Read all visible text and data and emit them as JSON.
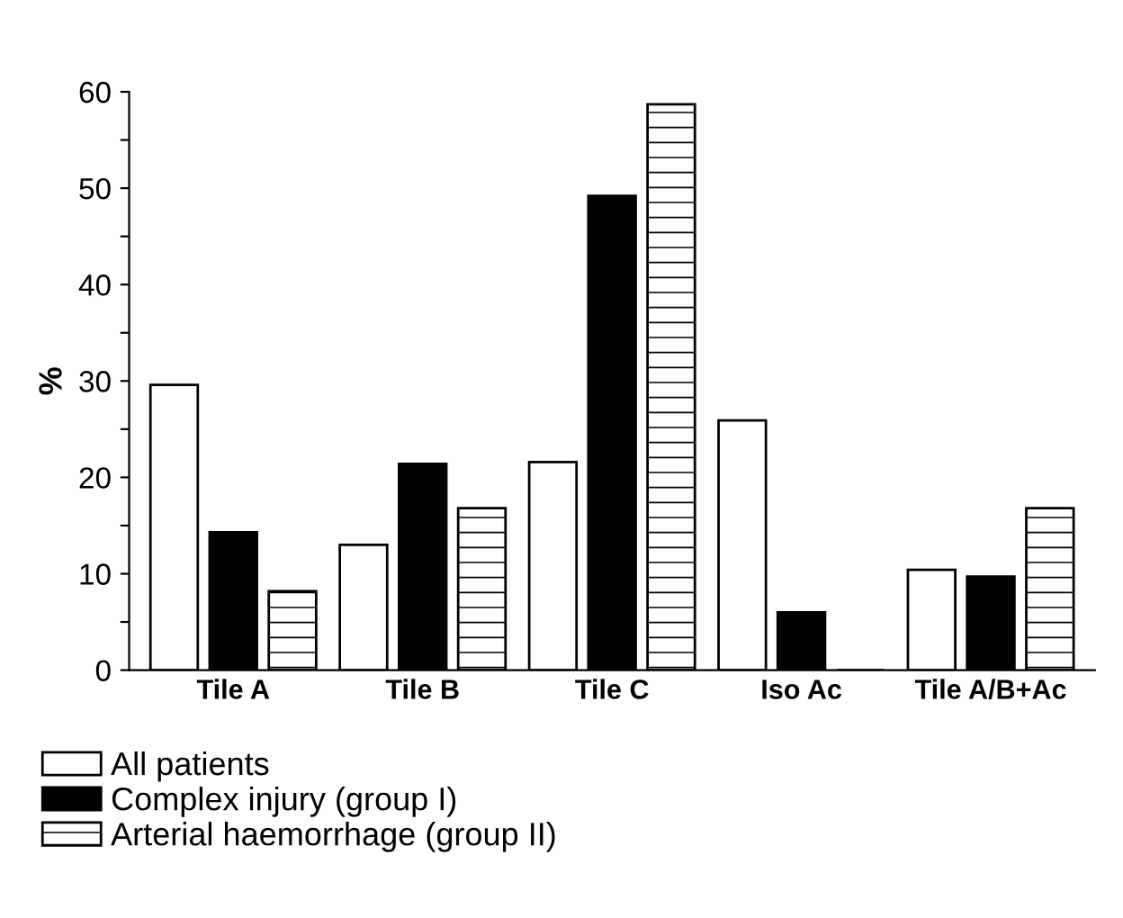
{
  "chart_data": {
    "type": "bar",
    "ylabel": "%",
    "categories": [
      "Tile A",
      "Tile B",
      "Tile C",
      "Iso Ac",
      "Tile A/B+Ac"
    ],
    "series": [
      {
        "name": "All patients",
        "color": "#ffffff",
        "values": [
          29.6,
          13.0,
          21.6,
          25.9,
          10.4
        ]
      },
      {
        "name": "Complex injury (group I)",
        "color": "#000000",
        "values": [
          14.3,
          21.4,
          49.2,
          6.0,
          9.7
        ]
      },
      {
        "name": "Arterial haemorrhage (group II)",
        "color": "#000000",
        "values": [
          8.2,
          16.8,
          58.7,
          0,
          16.8
        ]
      }
    ],
    "ylim": [
      0,
      60
    ],
    "yticks": [
      0,
      {
        "value": 5,
        "label": null
      },
      10,
      {
        "value": 15,
        "label": null
      },
      20,
      {
        "value": 25,
        "label": null
      },
      30,
      {
        "value": 35,
        "label": null
      },
      40,
      {
        "value": 45,
        "label": null
      },
      50,
      {
        "value": 55,
        "label": null
      },
      60
    ],
    "grid": false,
    "legend": "bottom"
  }
}
